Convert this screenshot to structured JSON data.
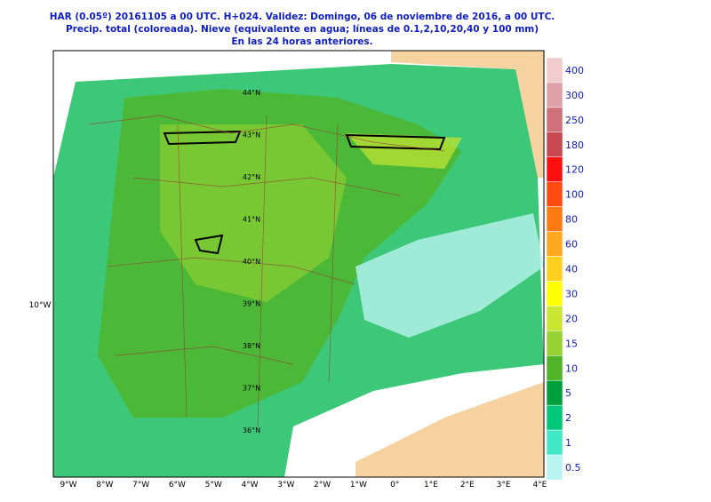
{
  "header": {
    "lines": [
      "HAR (0.05º) 20161105 a 00 UTC.  H+024. Validez: Domingo, 06 de noviembre de 2016,  a  00 UTC.",
      "Precip. total (coloreada). Nieve (equivalente en agua; líneas de 0.1,2,10,20,40 y 100 mm)",
      "En las 24 horas anteriores."
    ]
  },
  "map": {
    "longitude_labels": [
      "9°W",
      "8°W",
      "7°W",
      "6°W",
      "5°W",
      "4°W",
      "3°W",
      "2°W",
      "1°W",
      "0°",
      "1°E",
      "2°E",
      "3°E",
      "4°E"
    ],
    "latitude_labels": [
      "44°N",
      "43°N",
      "42°N",
      "41°N",
      "40°N",
      "39°N",
      "38°N",
      "37°N",
      "36°N"
    ],
    "left_label": "10°W"
  },
  "legend": {
    "levels": [
      400,
      300,
      250,
      180,
      120,
      100,
      80,
      60,
      40,
      30,
      20,
      15,
      10,
      5,
      2,
      1,
      0.5
    ],
    "colors": [
      "#f2cccc",
      "#e0a0a8",
      "#d07078",
      "#c84850",
      "#ff1010",
      "#ff4a10",
      "#ff7a10",
      "#ffa820",
      "#ffd020",
      "#ffff00",
      "#c8e632",
      "#96d232",
      "#50b428",
      "#00a03c",
      "#00c878",
      "#40e8c8",
      "#b8f4f0"
    ]
  }
}
